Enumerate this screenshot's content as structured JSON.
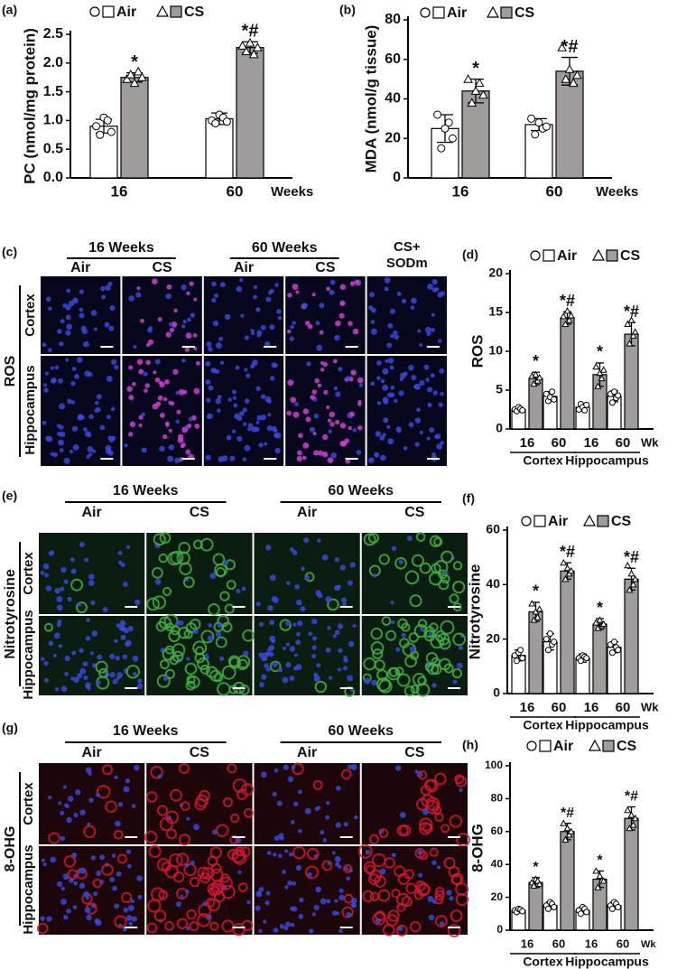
{
  "chart_data": [
    {
      "type": "bar",
      "panel": "(a)",
      "ylabel": "PC (nmol/mg protein)",
      "categories": [
        "16",
        "60"
      ],
      "x_label": "Weeks",
      "ylim": [
        0,
        2.5
      ],
      "yticks": [
        {
          "value": 0,
          "label": "0.0"
        },
        0.5,
        {
          "value": 1,
          "label": "1.0"
        },
        1.5,
        {
          "value": 2,
          "label": "2.0"
        },
        2.5
      ],
      "series": [
        {
          "name": "Air",
          "color": "#ffffff",
          "values": [
            0.9,
            1.03
          ],
          "errors": [
            0.12,
            0.1
          ],
          "points": [
            [
              0.9,
              0.75,
              1.05,
              1.0,
              0.8
            ],
            [
              1.0,
              0.95,
              1.1,
              1.05,
              0.98
            ]
          ]
        },
        {
          "name": "CS",
          "color": "#a09c9c",
          "values": [
            1.75,
            2.27
          ],
          "errors": [
            0.08,
            0.1
          ],
          "points": [
            [
              1.72,
              1.8,
              1.65,
              1.85,
              1.75
            ],
            [
              2.3,
              2.2,
              2.35,
              2.15,
              2.27
            ]
          ],
          "annotations": [
            "*",
            "*#"
          ]
        }
      ]
    },
    {
      "type": "bar",
      "panel": "(b)",
      "ylabel": "MDA (nmol/g tissue)",
      "categories": [
        "16",
        "60"
      ],
      "x_label": "Weeks",
      "ylim": [
        0,
        80
      ],
      "yticks": [
        0,
        20,
        40,
        60,
        80
      ],
      "series": [
        {
          "name": "Air",
          "color": "#ffffff",
          "values": [
            25,
            27
          ],
          "errors": [
            7,
            3
          ],
          "points": [
            [
              32,
              15,
              25,
              28,
              20
            ],
            [
              30,
              22,
              28,
              25,
              26
            ]
          ]
        },
        {
          "name": "CS",
          "color": "#a09c9c",
          "values": [
            44,
            54
          ],
          "errors": [
            6,
            7
          ],
          "points": [
            [
              50,
              38,
              44,
              48,
              42
            ],
            [
              66,
              50,
              55,
              48,
              52
            ]
          ],
          "annotations": [
            "*",
            "*#"
          ]
        }
      ]
    },
    {
      "type": "bar",
      "panel": "(d)",
      "ylabel": "ROS",
      "categories": [
        "16",
        "60",
        "16",
        "60"
      ],
      "x_label": "Wk",
      "groups": [
        "Cortex",
        "Hippocampus"
      ],
      "ylim": [
        0,
        20
      ],
      "yticks": [
        0,
        5,
        10,
        15,
        20
      ],
      "series": [
        {
          "name": "Air",
          "color": "#ffffff",
          "values": [
            2.5,
            4.2,
            2.8,
            4.2
          ],
          "errors": [
            0.3,
            0.6,
            0.5,
            0.7
          ],
          "points": [
            [
              2.5,
              2.3,
              2.8,
              2.6,
              2.4
            ],
            [
              4.5,
              3.6,
              4.1,
              4.8,
              3.8
            ],
            [
              2.5,
              3.2,
              2.8,
              2.4,
              3.1
            ],
            [
              4.5,
              3.4,
              4.8,
              4.0,
              4.3
            ]
          ]
        },
        {
          "name": "CS",
          "color": "#a09c9c",
          "values": [
            6.5,
            14.3,
            7,
            12.2
          ],
          "errors": [
            0.8,
            0.8,
            1.5,
            1.5
          ],
          "points": [
            [
              6.8,
              5.8,
              7.0,
              6.2,
              6.6
            ],
            [
              14.5,
              13.5,
              15.2,
              14.0,
              14.6
            ],
            [
              8.0,
              5.5,
              7.2,
              6.5,
              7.6
            ],
            [
              13.5,
              11.0,
              14.0,
              12.0,
              12.5
            ]
          ],
          "annotations": [
            "*",
            "*#",
            "*",
            "*#"
          ]
        }
      ]
    },
    {
      "type": "bar",
      "panel": "(f)",
      "ylabel": "Nitrotyrosine",
      "categories": [
        "16",
        "60",
        "16",
        "60"
      ],
      "x_label": "Wk",
      "groups": [
        "Cortex",
        "Hippocampus"
      ],
      "ylim": [
        0,
        60
      ],
      "yticks": [
        0,
        20,
        40,
        60
      ],
      "series": [
        {
          "name": "Air",
          "color": "#ffffff",
          "values": [
            14,
            19,
            13,
            17
          ],
          "errors": [
            2,
            3,
            1.5,
            2
          ],
          "points": [
            [
              14,
              12,
              15,
              16,
              13
            ],
            [
              20,
              16,
              22,
              18,
              19
            ],
            [
              13,
              12,
              14,
              13.5,
              13
            ],
            [
              18,
              15,
              19,
              17,
              16
            ]
          ]
        },
        {
          "name": "CS",
          "color": "#a09c9c",
          "values": [
            30,
            45,
            25.5,
            42
          ],
          "errors": [
            3.5,
            3,
            2,
            4
          ],
          "points": [
            [
              33,
              27,
              30,
              28,
              31
            ],
            [
              48,
              42,
              46,
              44,
              45
            ],
            [
              26,
              24,
              27,
              25,
              25.5
            ],
            [
              47,
              38,
              44,
              40,
              42
            ]
          ],
          "annotations": [
            "*",
            "*#",
            "*",
            "*#"
          ]
        }
      ]
    },
    {
      "type": "bar",
      "panel": "(h)",
      "ylabel": "8-OHG",
      "categories": [
        "16",
        "60",
        "16",
        "60"
      ],
      "x_label": "Wk",
      "groups": [
        "Cortex",
        "Hippocampus"
      ],
      "ylim": [
        0,
        100
      ],
      "yticks": [
        0,
        20,
        40,
        60,
        80,
        100
      ],
      "series": [
        {
          "name": "Air",
          "color": "#ffffff",
          "values": [
            12,
            15,
            12,
            15
          ],
          "errors": [
            1.5,
            2,
            2,
            2
          ],
          "points": [
            [
              12,
              11,
              13,
              12.5,
              11.5
            ],
            [
              15,
              13,
              17,
              16,
              14
            ],
            [
              12,
              10,
              14,
              13,
              11
            ],
            [
              15,
              13,
              17,
              16,
              14
            ]
          ]
        },
        {
          "name": "CS",
          "color": "#a09c9c",
          "values": [
            29,
            60,
            31,
            68
          ],
          "errors": [
            3,
            5,
            5,
            7
          ],
          "points": [
            [
              29,
              27,
              31,
              30,
              28
            ],
            [
              65,
              55,
              62,
              58,
              60
            ],
            [
              36,
              26,
              33,
              30,
              30
            ],
            [
              73,
              62,
              70,
              64,
              68
            ]
          ],
          "annotations": [
            "*",
            "*#",
            "*",
            "*#"
          ]
        }
      ]
    }
  ],
  "images": [
    {
      "panel": "(c)",
      "marker": "ROS",
      "groups": [
        "16 Weeks",
        "60 Weeks"
      ],
      "columns": [
        "Air",
        "CS",
        "Air",
        "CS",
        "CS+ SODm"
      ],
      "rows": [
        "Cortex",
        "Hippocampus"
      ]
    },
    {
      "panel": "(e)",
      "marker": "Nitrotyrosine",
      "groups": [
        "16 Weeks",
        "60 Weeks"
      ],
      "columns": [
        "Air",
        "CS",
        "Air",
        "CS"
      ],
      "rows": [
        "Cortex",
        "Hippocampus"
      ]
    },
    {
      "panel": "(g)",
      "marker": "8-OHG",
      "groups": [
        "16 Weeks",
        "60 Weeks"
      ],
      "columns": [
        "Air",
        "CS",
        "Air",
        "CS"
      ],
      "rows": [
        "Cortex",
        "Hippocampus"
      ]
    }
  ]
}
